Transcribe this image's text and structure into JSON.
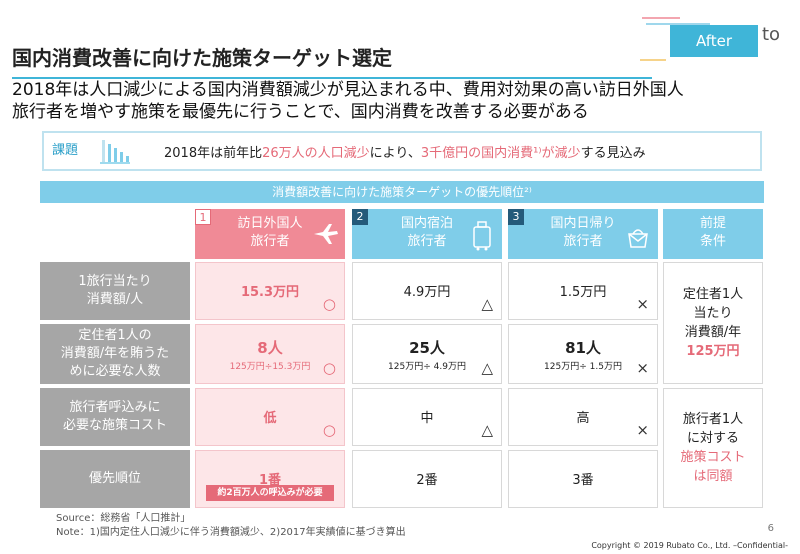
{
  "badge": {
    "label": "After",
    "suffix": "to"
  },
  "title": "国内消費改善に向けた施策ターゲット選定",
  "lead": {
    "line1": "2018年は人口減少による国内消費額減少が見込まれる中、費用対効果の高い訪日外国人",
    "line2": "旅行者を増やす施策を最優先に行うことで、国内消費を改善する必要がある"
  },
  "issue": {
    "tag": "課題",
    "text_a": "2018年は前年比",
    "text_b": "26万人の人口減少",
    "text_c": "により、",
    "text_d": "3千億円の国内消費",
    "text_e": "¹⁾が減少",
    "text_f": "する見込み"
  },
  "band": "消費額改善に向けた施策ターゲットの優先順位²⁾",
  "columns": [
    {
      "num": "1",
      "line1": "訪日外国人",
      "line2": "旅行者",
      "icon": "airplane-icon"
    },
    {
      "num": "2",
      "line1": "国内宿泊",
      "line2": "旅行者",
      "icon": "suitcase-icon"
    },
    {
      "num": "3",
      "line1": "国内日帰り",
      "line2": "旅行者",
      "icon": "handbag-icon"
    },
    {
      "num": "",
      "line1": "前提",
      "line2": "条件",
      "icon": ""
    }
  ],
  "rows": [
    {
      "label1": "1旅行当たり",
      "label2": "消費額/人",
      "label3": ""
    },
    {
      "label1": "定住者1人の",
      "label2": "消費額/年を賄うた",
      "label3": "めに必要な人数"
    },
    {
      "label1": "旅行者呼込みに",
      "label2": "必要な施策コスト",
      "label3": ""
    },
    {
      "label1": "優先順位",
      "label2": "",
      "label3": ""
    }
  ],
  "cells": {
    "r1": {
      "c1": "15.3万円",
      "c2": "4.9万円",
      "c3": "1.5万円",
      "m1": "○",
      "m2": "△",
      "m3": "×"
    },
    "r2": {
      "c1": "8人",
      "c1_sub": "125万円÷15.3万円",
      "c2": "25人",
      "c2_sub": "125万円÷ 4.9万円",
      "c3": "81人",
      "c3_sub": "125万円÷ 1.5万円",
      "m1": "○",
      "m2": "△",
      "m3": "×"
    },
    "r3": {
      "c1": "低",
      "c2": "中",
      "c3": "高",
      "m1": "○",
      "m2": "△",
      "m3": "×"
    },
    "r4": {
      "c1": "1番",
      "c1_note": "約2百万人の呼込みが必要",
      "c2": "2番",
      "c3": "3番"
    }
  },
  "premise": {
    "p1_l1": "定住者1人",
    "p1_l2": "当たり",
    "p1_l3": "消費額/年",
    "p1_l4": "125万円",
    "p2_l1": "旅行者1人",
    "p2_l2": "に対する",
    "p2_l3": "施策コスト",
    "p2_l4": "は同額"
  },
  "footer": {
    "source": "Source：総務省「人口推計」",
    "note": "Note：1)国内定住人口減少に伴う消費額減少、2)2017年実績値に基づき算出",
    "page": "6",
    "copyright": "Copyright © 2019 Rubato Co., Ltd. –Confidential-"
  },
  "colors": {
    "accent": "#3fb5d8",
    "pink": "#e56a78",
    "light_blue": "#7fcde9",
    "gray": "#a6a6a6"
  }
}
